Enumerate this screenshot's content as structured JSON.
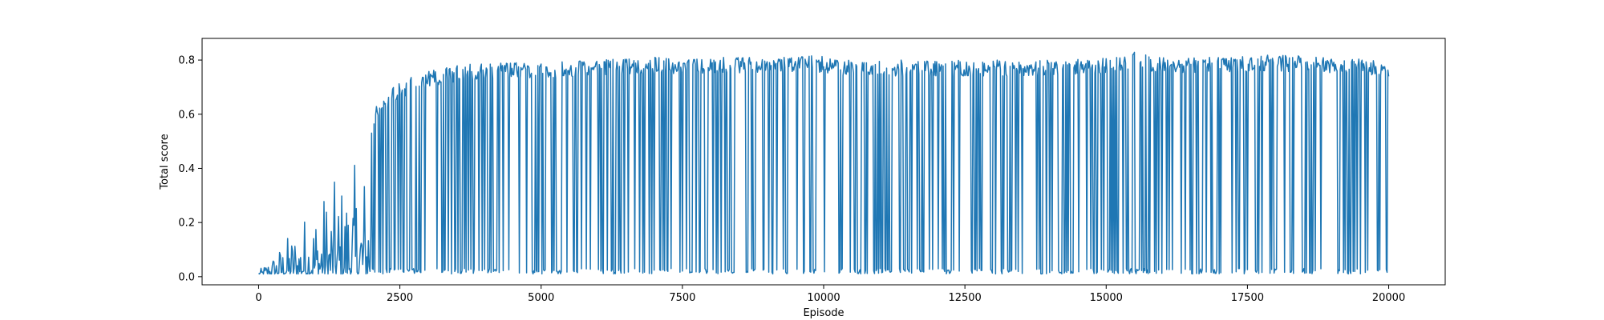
{
  "chart_data": {
    "type": "line",
    "title": "",
    "xlabel": "Episode",
    "ylabel": "Total score",
    "xlim": [
      -1000,
      21000
    ],
    "ylim": [
      -0.03,
      0.88
    ],
    "xticks": [
      0,
      2500,
      5000,
      7500,
      10000,
      12500,
      15000,
      17500,
      20000
    ],
    "yticks": [
      0.0,
      0.2,
      0.4,
      0.6,
      0.8
    ],
    "xtick_labels": [
      "0",
      "2500",
      "5000",
      "7500",
      "10000",
      "12500",
      "15000",
      "17500",
      "20000"
    ],
    "ytick_labels": [
      "0.0",
      "0.2",
      "0.4",
      "0.6",
      "0.8"
    ],
    "grid": false,
    "legend": "none",
    "series": [
      {
        "color": "#1f77b4",
        "x_start": 0,
        "x_end": 20000,
        "description_points": {
          "x": [
            0,
            500,
            1000,
            1500,
            1900,
            2100,
            2500,
            3000,
            3500,
            4000,
            4500,
            5000,
            6000,
            7000,
            8000,
            9000,
            9800,
            10300,
            11000,
            12000,
            13000,
            14000,
            15000,
            15500,
            16000,
            17000,
            18000,
            19000,
            20000
          ],
          "envelope_max": [
            0.02,
            0.15,
            0.3,
            0.38,
            0.45,
            0.65,
            0.72,
            0.76,
            0.78,
            0.79,
            0.79,
            0.79,
            0.8,
            0.81,
            0.81,
            0.81,
            0.82,
            0.8,
            0.8,
            0.8,
            0.8,
            0.8,
            0.81,
            0.83,
            0.81,
            0.81,
            0.82,
            0.81,
            0.8
          ],
          "envelope_min": [
            0.01,
            0.01,
            0.01,
            0.01,
            0.01,
            0.01,
            0.01,
            0.01,
            0.01,
            0.01,
            0.01,
            0.01,
            0.01,
            0.01,
            0.01,
            0.01,
            0.01,
            0.01,
            0.01,
            0.01,
            0.01,
            0.01,
            0.01,
            0.01,
            0.01,
            0.01,
            0.01,
            0.01,
            0.01
          ]
        }
      }
    ]
  }
}
